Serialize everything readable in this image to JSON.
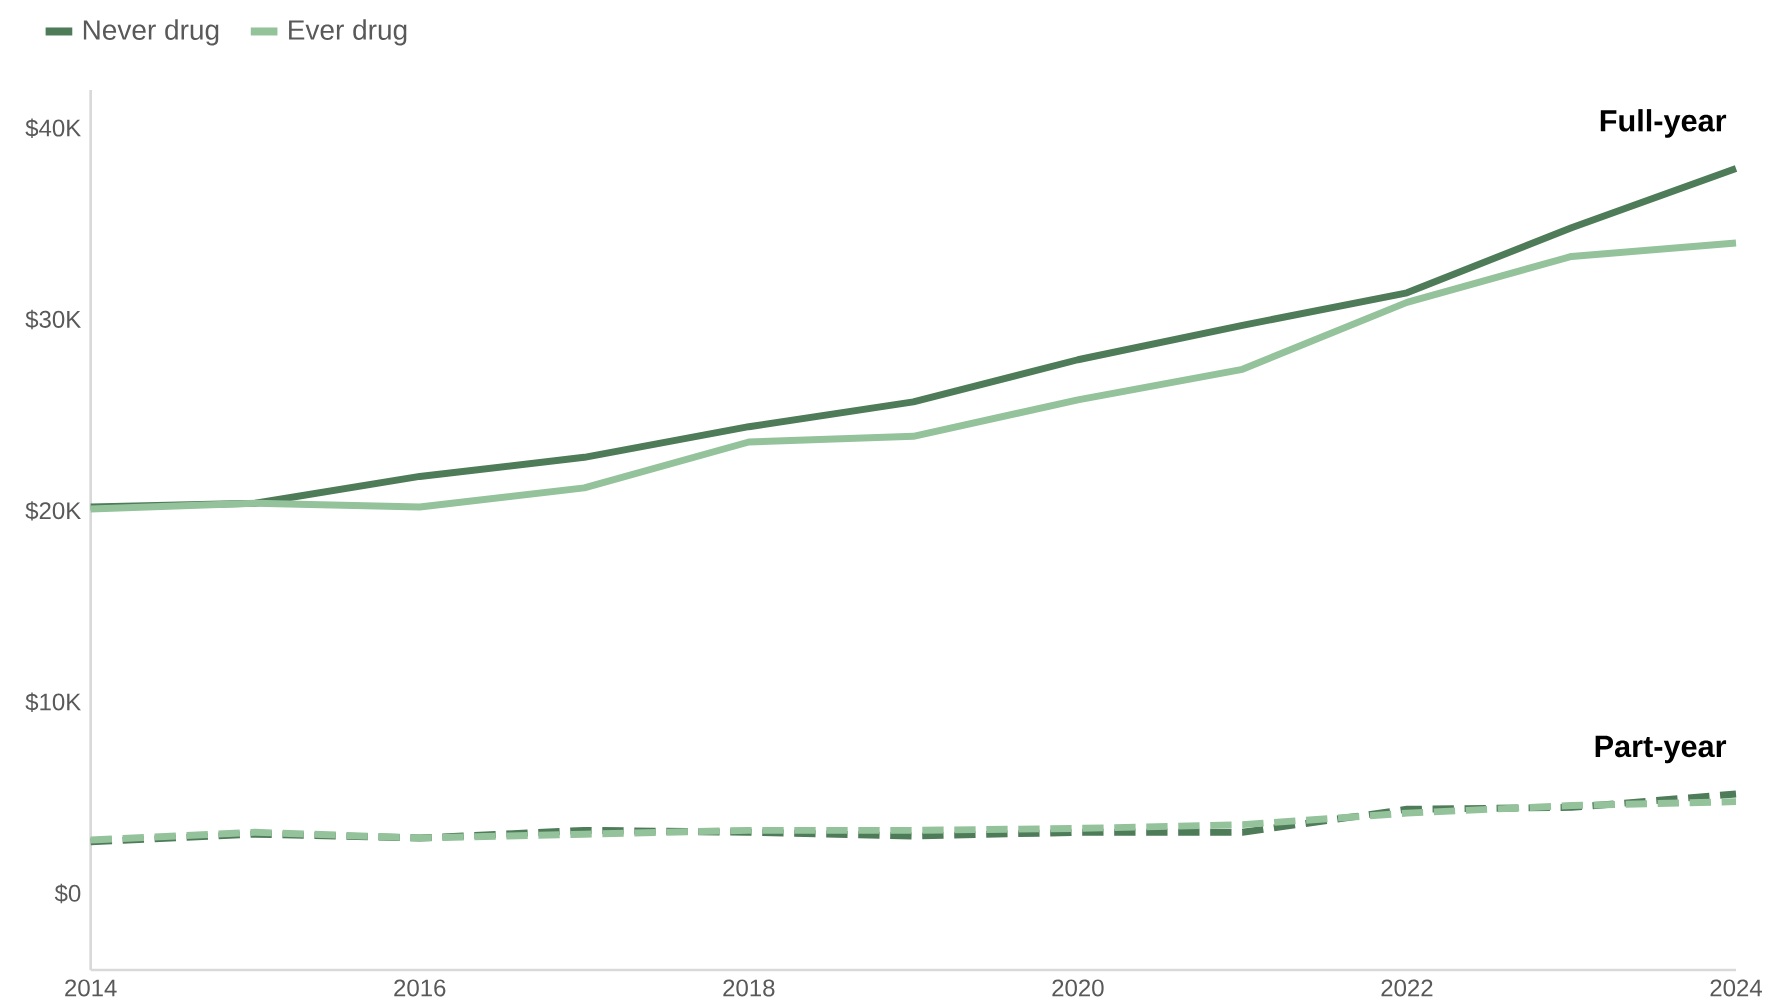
{
  "chart_data": {
    "type": "line",
    "x": [
      2014,
      2015,
      2016,
      2017,
      2018,
      2019,
      2020,
      2021,
      2022,
      2023,
      2024
    ],
    "series": [
      {
        "name": "Never drug",
        "color": "#4e7b58",
        "line_style": "solid",
        "values": [
          20.2,
          20.4,
          21.8,
          22.8,
          24.4,
          25.7,
          27.9,
          29.7,
          31.4,
          34.8,
          37.9
        ]
      },
      {
        "name": "Ever drug",
        "color": "#93c29b",
        "line_style": "solid",
        "values": [
          20.1,
          20.4,
          20.2,
          21.2,
          23.6,
          23.9,
          25.8,
          27.4,
          30.9,
          33.3,
          34.0
        ]
      },
      {
        "color": "#4e7b58",
        "line_style": "dashed",
        "values": [
          2.7,
          3.1,
          2.9,
          3.3,
          3.2,
          3.0,
          3.2,
          3.2,
          4.4,
          4.5,
          5.2
        ]
      },
      {
        "color": "#93c29b",
        "line_style": "dashed",
        "values": [
          2.8,
          3.2,
          2.9,
          3.1,
          3.3,
          3.3,
          3.4,
          3.6,
          4.2,
          4.6,
          4.8
        ]
      }
    ],
    "annotations": [
      "Full-year",
      "Part-year"
    ],
    "xlim": [
      2014,
      2024
    ],
    "xticks": [
      2014,
      2016,
      2018,
      2020,
      2022,
      2024
    ],
    "ylim": [
      -4,
      42
    ],
    "yticks": [
      {
        "value": 0,
        "label": "$0"
      },
      {
        "value": 10,
        "label": "$10K"
      },
      {
        "value": 20,
        "label": "$20K"
      },
      {
        "value": 30,
        "label": "$30K"
      },
      {
        "value": 40,
        "label": "$40K"
      }
    ],
    "legend": "top left",
    "grid": false,
    "marker": "none"
  }
}
